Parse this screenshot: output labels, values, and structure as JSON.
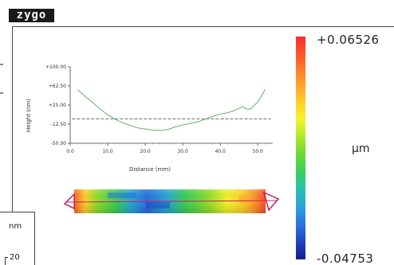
{
  "logo": {
    "text": "zygo"
  },
  "colorbar": {
    "max_label": "+0.06526",
    "min_label": "-0.04753",
    "unit": "µm"
  },
  "profile_chart": {
    "ylabel": "Height (nm)",
    "xlabel": "Distance (mm)",
    "y_ticks": [
      "+100.00",
      "+62.50",
      "+25.00",
      "-12.50",
      "-50.00"
    ],
    "x_ticks": [
      "0.0",
      "10.0",
      "20.0",
      "30.0",
      "40.0",
      "50.0"
    ],
    "line_color": "#5cb85c",
    "reference_line_color": "#555555"
  },
  "chart_data": {
    "type": "line",
    "xlabel": "Distance (mm)",
    "ylabel": "Height (nm)",
    "xlim": [
      0,
      54
    ],
    "ylim": [
      -50,
      100
    ],
    "reference_y": -2,
    "series": [
      {
        "x": [
          2,
          4,
          6,
          8,
          10,
          12,
          14,
          16,
          18,
          20,
          22,
          24,
          26,
          28,
          30,
          32,
          34,
          36,
          38,
          40,
          42,
          44,
          46,
          47,
          48,
          50,
          52
        ],
        "y": [
          55,
          42,
          30,
          17,
          6,
          -3,
          -10,
          -15,
          -20,
          -22,
          -24,
          -25,
          -23,
          -18,
          -14,
          -11,
          -8,
          -3,
          3,
          7,
          10,
          15,
          22,
          17,
          17,
          31,
          56
        ]
      }
    ]
  },
  "legend": {
    "unit": "nm",
    "value": "20"
  }
}
